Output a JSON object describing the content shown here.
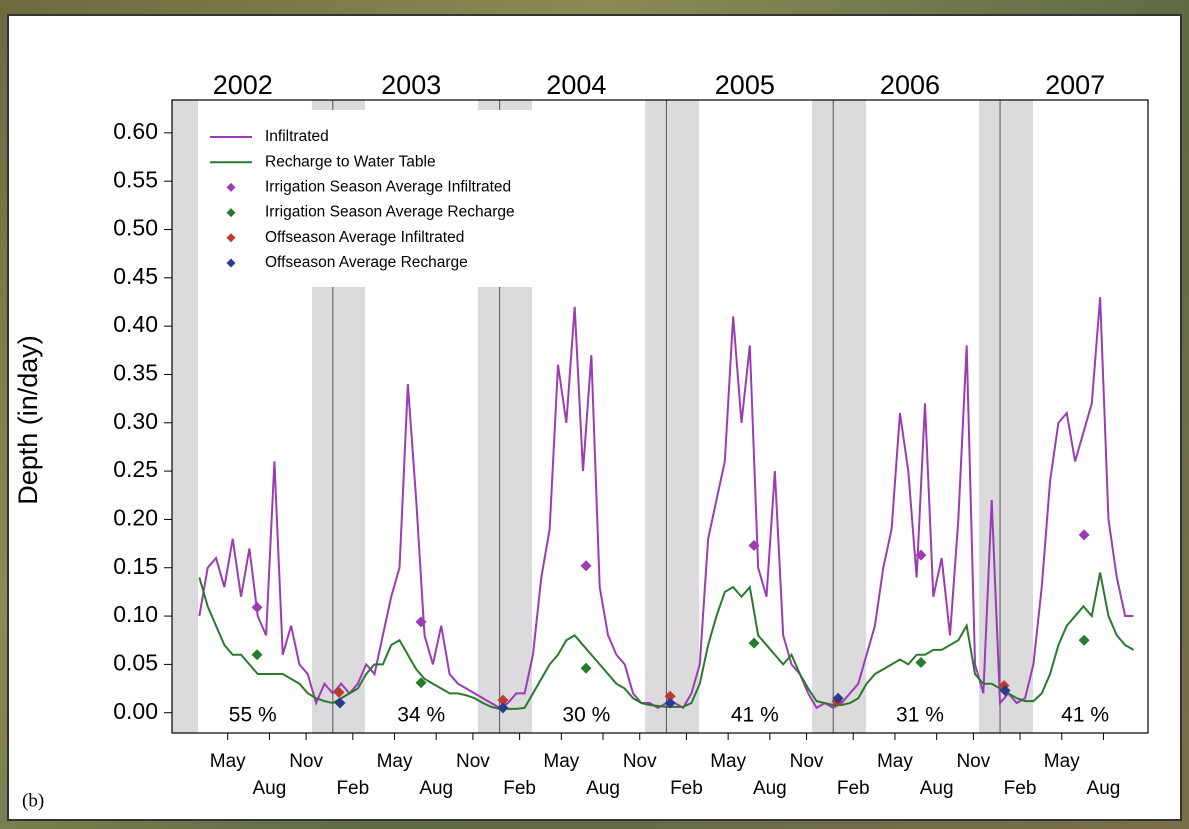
{
  "chart_data": {
    "type": "line",
    "y_label": "Depth (in/day)",
    "panel_label": "(b)",
    "xlim": [
      2002.036,
      2007.887
    ],
    "ylim": [
      -0.021,
      0.634
    ],
    "yticks": [
      {
        "value": 0,
        "label": "0.00"
      },
      {
        "value": 0.05,
        "label": "0.05"
      },
      {
        "value": 0.1,
        "label": "0.10"
      },
      {
        "value": 0.15,
        "label": "0.15"
      },
      {
        "value": 0.2,
        "label": "0.20"
      },
      {
        "value": 0.25,
        "label": "0.25"
      },
      {
        "value": 0.3,
        "label": "0.30"
      },
      {
        "value": 0.35,
        "label": "0.35"
      },
      {
        "value": 0.4,
        "label": "0.40"
      },
      {
        "value": 0.45,
        "label": "0.45"
      },
      {
        "value": 0.5,
        "label": "0.50"
      },
      {
        "value": 0.55,
        "label": "0.55"
      },
      {
        "value": 0.6,
        "label": "0.60"
      }
    ],
    "xticks": [
      {
        "value": 2002.37,
        "label": "May"
      },
      {
        "value": 2002.62,
        "label": "Aug"
      },
      {
        "value": 2002.84,
        "label": "Nov"
      },
      {
        "value": 2003.12,
        "label": "Feb"
      },
      {
        "value": 2003.37,
        "label": "May"
      },
      {
        "value": 2003.62,
        "label": "Aug"
      },
      {
        "value": 2003.84,
        "label": "Nov"
      },
      {
        "value": 2004.12,
        "label": "Feb"
      },
      {
        "value": 2004.37,
        "label": "May"
      },
      {
        "value": 2004.62,
        "label": "Aug"
      },
      {
        "value": 2004.84,
        "label": "Nov"
      },
      {
        "value": 2005.12,
        "label": "Feb"
      },
      {
        "value": 2005.37,
        "label": "May"
      },
      {
        "value": 2005.62,
        "label": "Aug"
      },
      {
        "value": 2005.84,
        "label": "Nov"
      },
      {
        "value": 2006.12,
        "label": "Feb"
      },
      {
        "value": 2006.37,
        "label": "May"
      },
      {
        "value": 2006.62,
        "label": "Aug"
      },
      {
        "value": 2006.84,
        "label": "Nov"
      },
      {
        "value": 2007.12,
        "label": "Feb"
      },
      {
        "value": 2007.37,
        "label": "May"
      },
      {
        "value": 2007.62,
        "label": "Aug"
      }
    ],
    "year_labels": [
      {
        "value": 2002.46,
        "label": "2002"
      },
      {
        "value": 2003.47,
        "label": "2003"
      },
      {
        "value": 2004.46,
        "label": "2004"
      },
      {
        "value": 2005.47,
        "label": "2005"
      },
      {
        "value": 2006.46,
        "label": "2006"
      },
      {
        "value": 2007.45,
        "label": "2007"
      }
    ],
    "annotations": [
      "55 %",
      "34 %",
      "30 %",
      "41 %",
      "31 %",
      "41 %"
    ],
    "shaded_periods": [
      [
        2002.036,
        2002.192
      ],
      [
        2002.875,
        2003.193
      ],
      [
        2003.87,
        2004.194
      ],
      [
        2004.872,
        2005.196
      ],
      [
        2005.873,
        2006.197
      ],
      [
        2006.874,
        2007.198
      ]
    ],
    "shade_color": "#dcdadc",
    "year_lines": [
      2003,
      2004,
      2005,
      2006,
      2007
    ],
    "legend": "top-left",
    "x": [
      2002.2,
      2002.25,
      2002.3,
      2002.35,
      2002.4,
      2002.45,
      2002.5,
      2002.55,
      2002.6,
      2002.65,
      2002.7,
      2002.75,
      2002.8,
      2002.85,
      2002.9,
      2002.95,
      2003,
      2003.05,
      2003.1,
      2003.15,
      2003.2,
      2003.25,
      2003.3,
      2003.35,
      2003.4,
      2003.45,
      2003.5,
      2003.55,
      2003.6,
      2003.65,
      2003.7,
      2003.75,
      2003.8,
      2003.85,
      2003.9,
      2003.95,
      2004,
      2004.05,
      2004.1,
      2004.15,
      2004.2,
      2004.25,
      2004.3,
      2004.35,
      2004.4,
      2004.45,
      2004.5,
      2004.55,
      2004.6,
      2004.65,
      2004.7,
      2004.75,
      2004.8,
      2004.85,
      2004.9,
      2004.95,
      2005,
      2005.05,
      2005.1,
      2005.15,
      2005.2,
      2005.25,
      2005.3,
      2005.35,
      2005.4,
      2005.45,
      2005.5,
      2005.55,
      2005.6,
      2005.65,
      2005.7,
      2005.75,
      2005.8,
      2005.85,
      2005.9,
      2005.95,
      2006,
      2006.05,
      2006.1,
      2006.15,
      2006.2,
      2006.25,
      2006.3,
      2006.35,
      2006.4,
      2006.45,
      2006.5,
      2006.55,
      2006.6,
      2006.65,
      2006.7,
      2006.75,
      2006.8,
      2006.85,
      2006.9,
      2006.95,
      2007,
      2007.05,
      2007.1,
      2007.15,
      2007.2,
      2007.25,
      2007.3,
      2007.35,
      2007.4,
      2007.45,
      2007.5,
      2007.55,
      2007.6,
      2007.65,
      2007.7,
      2007.75,
      2007.8
    ],
    "series": [
      {
        "name": "Infiltrated",
        "color": "#9c3cb4",
        "style": "line",
        "values": [
          0.1,
          0.15,
          0.16,
          0.13,
          0.18,
          0.12,
          0.17,
          0.1,
          0.08,
          0.26,
          0.06,
          0.09,
          0.05,
          0.04,
          0.01,
          0.03,
          0.02,
          0.03,
          0.02,
          0.03,
          0.05,
          0.04,
          0.08,
          0.12,
          0.15,
          0.34,
          0.22,
          0.08,
          0.05,
          0.09,
          0.04,
          0.03,
          0.025,
          0.02,
          0.015,
          0.01,
          0.005,
          0.01,
          0.02,
          0.02,
          0.06,
          0.14,
          0.19,
          0.36,
          0.3,
          0.42,
          0.25,
          0.37,
          0.13,
          0.08,
          0.06,
          0.05,
          0.02,
          0.01,
          0.01,
          0.005,
          0.01,
          0.01,
          0.005,
          0.02,
          0.05,
          0.18,
          0.22,
          0.26,
          0.41,
          0.3,
          0.38,
          0.15,
          0.12,
          0.25,
          0.08,
          0.05,
          0.04,
          0.02,
          0.005,
          0.01,
          0.005,
          0.01,
          0.02,
          0.03,
          0.06,
          0.09,
          0.15,
          0.19,
          0.31,
          0.25,
          0.14,
          0.32,
          0.12,
          0.16,
          0.08,
          0.2,
          0.38,
          0.05,
          0.02,
          0.22,
          0.01,
          0.02,
          0.01,
          0.015,
          0.05,
          0.13,
          0.24,
          0.3,
          0.31,
          0.26,
          0.29,
          0.32,
          0.43,
          0.2,
          0.14,
          0.1,
          0.1
        ]
      },
      {
        "name": "Recharge to Water Table",
        "color": "#2a7a2e",
        "style": "line",
        "values": [
          0.14,
          0.11,
          0.09,
          0.07,
          0.06,
          0.06,
          0.05,
          0.04,
          0.04,
          0.04,
          0.04,
          0.035,
          0.03,
          0.02,
          0.015,
          0.012,
          0.01,
          0.015,
          0.02,
          0.025,
          0.04,
          0.05,
          0.05,
          0.07,
          0.075,
          0.06,
          0.045,
          0.035,
          0.03,
          0.025,
          0.02,
          0.02,
          0.018,
          0.015,
          0.01,
          0.006,
          0.004,
          0.004,
          0.004,
          0.005,
          0.02,
          0.035,
          0.05,
          0.06,
          0.075,
          0.08,
          0.07,
          0.06,
          0.05,
          0.04,
          0.03,
          0.025,
          0.015,
          0.01,
          0.008,
          0.007,
          0.006,
          0.006,
          0.006,
          0.01,
          0.03,
          0.07,
          0.1,
          0.125,
          0.13,
          0.12,
          0.13,
          0.08,
          0.07,
          0.06,
          0.05,
          0.06,
          0.04,
          0.025,
          0.012,
          0.01,
          0.008,
          0.008,
          0.01,
          0.015,
          0.03,
          0.04,
          0.045,
          0.05,
          0.055,
          0.05,
          0.06,
          0.06,
          0.065,
          0.065,
          0.07,
          0.075,
          0.09,
          0.04,
          0.03,
          0.03,
          0.025,
          0.02,
          0.015,
          0.012,
          0.012,
          0.02,
          0.04,
          0.07,
          0.09,
          0.1,
          0.11,
          0.1,
          0.145,
          0.1,
          0.08,
          0.07,
          0.065
        ]
      },
      {
        "name": "Irrigation Season Average Infiltrated",
        "color": "#9c3cb4",
        "style": "marker",
        "x": [
          2002.546,
          2003.529,
          2004.518,
          2005.525,
          2006.526,
          2007.504
        ],
        "values": [
          0.109,
          0.094,
          0.152,
          0.173,
          0.163,
          0.184
        ]
      },
      {
        "name": "Irrigation Season Average Recharge",
        "color": "#2a7a2e",
        "style": "marker",
        "x": [
          2002.546,
          2003.529,
          2004.518,
          2005.525,
          2006.526,
          2007.504
        ],
        "values": [
          0.06,
          0.031,
          0.046,
          0.072,
          0.052,
          0.075
        ]
      },
      {
        "name": "Offseason Average Infiltrated",
        "color": "#c0392b",
        "style": "marker",
        "x": [
          2003.037,
          2004.02,
          2005.022,
          2006.023,
          2007.024
        ],
        "values": [
          0.021,
          0.013,
          0.017,
          0.012,
          0.028
        ]
      },
      {
        "name": "Offseason Average Recharge",
        "color": "#2c3a8c",
        "style": "marker",
        "x": [
          2003.043,
          2004.02,
          2005.022,
          2006.029,
          2007.03
        ],
        "values": [
          0.01,
          0.005,
          0.01,
          0.015,
          0.023
        ]
      }
    ]
  }
}
